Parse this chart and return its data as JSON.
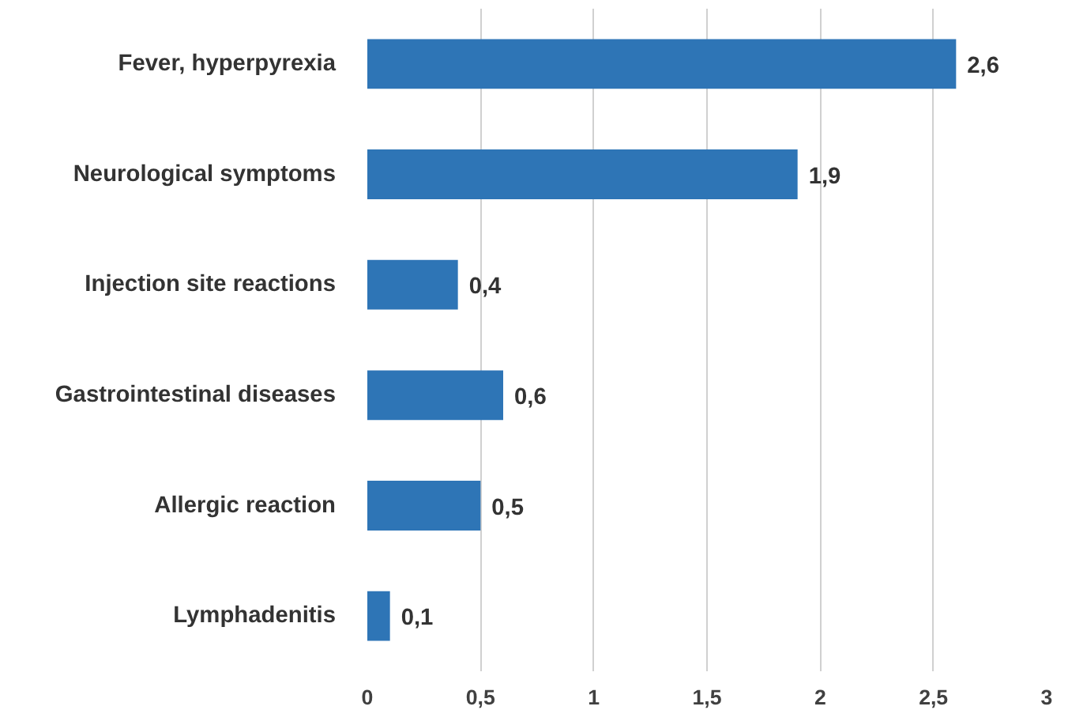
{
  "chart_data": {
    "type": "bar",
    "orientation": "horizontal",
    "categories": [
      "Fever, hyperpyrexia",
      "Neurological symptoms",
      "Injection site reactions",
      "Gastrointestinal diseases",
      "Allergic reaction",
      "Lymphadenitis"
    ],
    "values": [
      2.6,
      1.9,
      0.4,
      0.6,
      0.5,
      0.1
    ],
    "value_labels": [
      "2,6",
      "1,9",
      "0,4",
      "0,6",
      "0,5",
      "0,1"
    ],
    "color": "#2e75b6",
    "xlim": [
      0,
      3
    ],
    "xticks": [
      0,
      {
        "value": 0.5,
        "label": "0,5"
      },
      1,
      {
        "value": 1.5,
        "label": "1,5"
      },
      2,
      {
        "value": 2.5,
        "label": "2,5"
      },
      3
    ],
    "grid": "x"
  }
}
